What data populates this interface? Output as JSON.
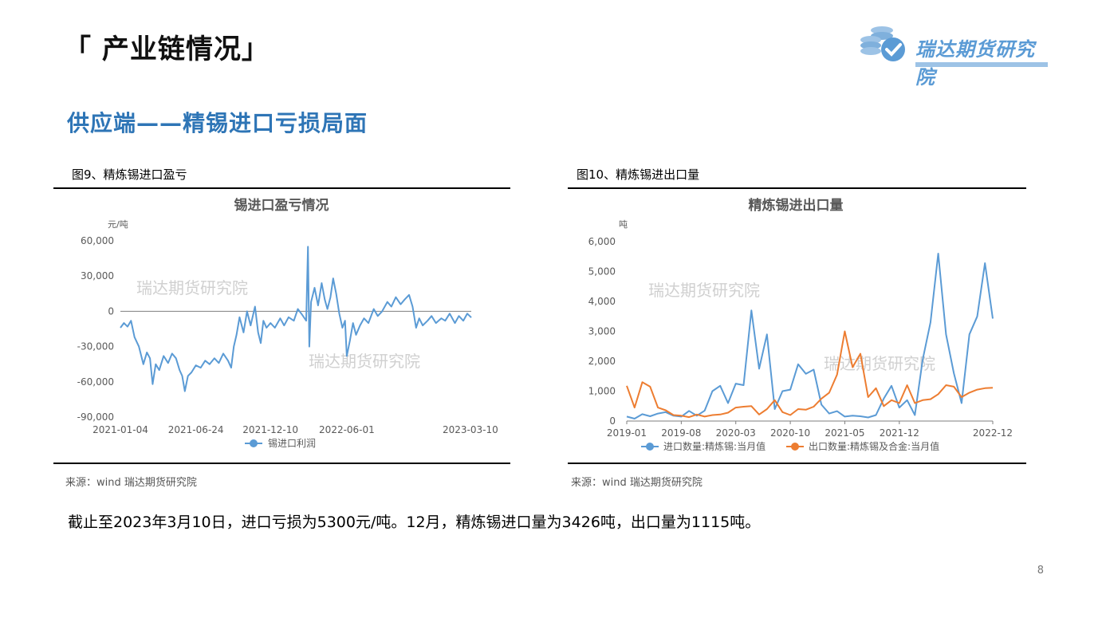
{
  "header": {
    "title": "「 产业链情况」",
    "logo_text": "瑞达期货研究院"
  },
  "section_title": "供应端——精锡进口亏损局面",
  "figure1": {
    "caption": "图9、精炼锡进口盈亏",
    "source": "来源：wind   瑞达期货研究院"
  },
  "figure2": {
    "caption": "图10、精炼锡进出口量",
    "source": "来源：wind   瑞达期货研究院"
  },
  "summary": "截止至2023年3月10日，进口亏损为5300元/吨。12月，精炼锡进口量为3426吨，出口量为1115吨。",
  "page_number": "8",
  "colors": {
    "series_blue": "#5b9bd5",
    "series_orange": "#ed7d31",
    "brand": "#2e75b6"
  },
  "chart_data": [
    {
      "type": "line",
      "title": "锡进口盈亏情况",
      "ylabel": "元/吨",
      "watermarks": [
        "瑞达期货研究院",
        "瑞达期货研究院"
      ],
      "ylim": [
        -90000,
        60000
      ],
      "yticks": [
        "60,000",
        "30,000",
        "0",
        "-30,000",
        "-60,000",
        "-90,000"
      ],
      "ytick_values": [
        60000,
        30000,
        0,
        -30000,
        -60000,
        -90000
      ],
      "xticks": [
        "2021-01-04",
        "2021-06-24",
        "2021-12-10",
        "2022-06-01",
        "2023-03-10"
      ],
      "x_start": "2021-01-04",
      "x_end": "2023-03-10",
      "grid": false,
      "legend": "bottom",
      "series": [
        {
          "name": "锡进口利润",
          "points": [
            [
              "2021-01-04",
              -14000
            ],
            [
              "2021-01-12",
              -10000
            ],
            [
              "2021-01-20",
              -13000
            ],
            [
              "2021-01-28",
              -8000
            ],
            [
              "2021-02-05",
              -22000
            ],
            [
              "2021-02-15",
              -30000
            ],
            [
              "2021-02-25",
              -45000
            ],
            [
              "2021-03-05",
              -35000
            ],
            [
              "2021-03-12",
              -40000
            ],
            [
              "2021-03-18",
              -62000
            ],
            [
              "2021-03-25",
              -45000
            ],
            [
              "2021-04-02",
              -50000
            ],
            [
              "2021-04-12",
              -38000
            ],
            [
              "2021-04-22",
              -44000
            ],
            [
              "2021-05-01",
              -36000
            ],
            [
              "2021-05-10",
              -40000
            ],
            [
              "2021-05-18",
              -50000
            ],
            [
              "2021-05-24",
              -55000
            ],
            [
              "2021-05-30",
              -68000
            ],
            [
              "2021-06-06",
              -55000
            ],
            [
              "2021-06-14",
              -52000
            ],
            [
              "2021-06-24",
              -46000
            ],
            [
              "2021-07-05",
              -48000
            ],
            [
              "2021-07-15",
              -42000
            ],
            [
              "2021-07-25",
              -45000
            ],
            [
              "2021-08-05",
              -40000
            ],
            [
              "2021-08-15",
              -44000
            ],
            [
              "2021-08-25",
              -36000
            ],
            [
              "2021-09-05",
              -42000
            ],
            [
              "2021-09-12",
              -48000
            ],
            [
              "2021-09-18",
              -30000
            ],
            [
              "2021-09-24",
              -20000
            ],
            [
              "2021-10-01",
              -5000
            ],
            [
              "2021-10-10",
              -18000
            ],
            [
              "2021-10-18",
              0
            ],
            [
              "2021-10-26",
              -12000
            ],
            [
              "2021-11-05",
              4000
            ],
            [
              "2021-11-12",
              -18000
            ],
            [
              "2021-11-18",
              -27000
            ],
            [
              "2021-11-24",
              -8000
            ],
            [
              "2021-12-01",
              -14000
            ],
            [
              "2021-12-10",
              -10000
            ],
            [
              "2021-12-20",
              -14000
            ],
            [
              "2022-01-01",
              -6000
            ],
            [
              "2022-01-10",
              -12000
            ],
            [
              "2022-01-20",
              -5000
            ],
            [
              "2022-02-01",
              -8000
            ],
            [
              "2022-02-10",
              2000
            ],
            [
              "2022-02-20",
              -3000
            ],
            [
              "2022-03-01",
              -8000
            ],
            [
              "2022-03-05",
              55000
            ],
            [
              "2022-03-08",
              -30000
            ],
            [
              "2022-03-12",
              8000
            ],
            [
              "2022-03-20",
              20000
            ],
            [
              "2022-03-28",
              5000
            ],
            [
              "2022-04-05",
              24000
            ],
            [
              "2022-04-12",
              10000
            ],
            [
              "2022-04-18",
              2000
            ],
            [
              "2022-04-25",
              12000
            ],
            [
              "2022-05-01",
              28000
            ],
            [
              "2022-05-08",
              15000
            ],
            [
              "2022-05-15",
              -2000
            ],
            [
              "2022-05-22",
              -14000
            ],
            [
              "2022-05-28",
              -8000
            ],
            [
              "2022-06-01",
              -38000
            ],
            [
              "2022-06-08",
              -25000
            ],
            [
              "2022-06-15",
              -10000
            ],
            [
              "2022-06-22",
              -20000
            ],
            [
              "2022-07-01",
              -12000
            ],
            [
              "2022-07-10",
              -6000
            ],
            [
              "2022-07-20",
              -10000
            ],
            [
              "2022-08-01",
              2000
            ],
            [
              "2022-08-10",
              -4000
            ],
            [
              "2022-08-20",
              0
            ],
            [
              "2022-09-01",
              8000
            ],
            [
              "2022-09-10",
              4000
            ],
            [
              "2022-09-20",
              12000
            ],
            [
              "2022-10-01",
              6000
            ],
            [
              "2022-10-10",
              10000
            ],
            [
              "2022-10-20",
              14000
            ],
            [
              "2022-10-28",
              4000
            ],
            [
              "2022-11-05",
              -14000
            ],
            [
              "2022-11-12",
              -6000
            ],
            [
              "2022-11-20",
              -12000
            ],
            [
              "2022-12-01",
              -8000
            ],
            [
              "2022-12-10",
              -4000
            ],
            [
              "2022-12-20",
              -10000
            ],
            [
              "2023-01-01",
              -6000
            ],
            [
              "2023-01-10",
              -8000
            ],
            [
              "2023-01-20",
              -2000
            ],
            [
              "2023-02-01",
              -10000
            ],
            [
              "2023-02-10",
              -4000
            ],
            [
              "2023-02-20",
              -8000
            ],
            [
              "2023-03-01",
              -2000
            ],
            [
              "2023-03-10",
              -5300
            ]
          ]
        }
      ]
    },
    {
      "type": "line",
      "title": "精炼锡进出口量",
      "ylabel": "吨",
      "watermarks": [
        "瑞达期货研究院",
        "瑞达期货研究院"
      ],
      "ylim": [
        0,
        6000
      ],
      "yticks": [
        "6,000",
        "5,000",
        "4,000",
        "3,000",
        "2,000",
        "1,000",
        "0"
      ],
      "ytick_values": [
        6000,
        5000,
        4000,
        3000,
        2000,
        1000,
        0
      ],
      "xticks": [
        "2019-01",
        "2019-08",
        "2020-03",
        "2020-10",
        "2021-05",
        "2021-12",
        "2022-12"
      ],
      "x": [
        "2019-01",
        "2019-02",
        "2019-03",
        "2019-04",
        "2019-05",
        "2019-06",
        "2019-07",
        "2019-08",
        "2019-09",
        "2019-10",
        "2019-11",
        "2019-12",
        "2020-01",
        "2020-02",
        "2020-03",
        "2020-04",
        "2020-05",
        "2020-06",
        "2020-07",
        "2020-08",
        "2020-09",
        "2020-10",
        "2020-11",
        "2020-12",
        "2021-01",
        "2021-02",
        "2021-03",
        "2021-04",
        "2021-05",
        "2021-06",
        "2021-07",
        "2021-08",
        "2021-09",
        "2021-10",
        "2021-11",
        "2021-12",
        "2022-01",
        "2022-02",
        "2022-03",
        "2022-04",
        "2022-05",
        "2022-06",
        "2022-07",
        "2022-08",
        "2022-09",
        "2022-10",
        "2022-11",
        "2022-12"
      ],
      "grid": false,
      "legend": "bottom",
      "series": [
        {
          "name": "进口数量:精炼锡:当月值",
          "values": [
            150,
            80,
            230,
            160,
            250,
            300,
            180,
            150,
            340,
            180,
            350,
            1000,
            1180,
            600,
            1250,
            1200,
            3700,
            1750,
            2900,
            400,
            1000,
            1050,
            1900,
            1580,
            1720,
            550,
            250,
            330,
            150,
            180,
            160,
            120,
            200,
            750,
            1180,
            450,
            700,
            200,
            2050,
            3300,
            5600,
            2900,
            1600,
            600,
            2900,
            3500,
            5280,
            3426
          ]
        },
        {
          "name": "出口数量:精炼锡及合金:当月值",
          "values": [
            1180,
            450,
            1300,
            1150,
            450,
            360,
            200,
            180,
            130,
            220,
            150,
            200,
            220,
            280,
            450,
            480,
            500,
            220,
            400,
            700,
            300,
            200,
            400,
            380,
            480,
            750,
            950,
            1550,
            3000,
            1800,
            2250,
            800,
            1100,
            500,
            700,
            600,
            1200,
            600,
            700,
            730,
            900,
            1200,
            1150,
            800,
            950,
            1050,
            1100,
            1115
          ]
        }
      ]
    }
  ]
}
